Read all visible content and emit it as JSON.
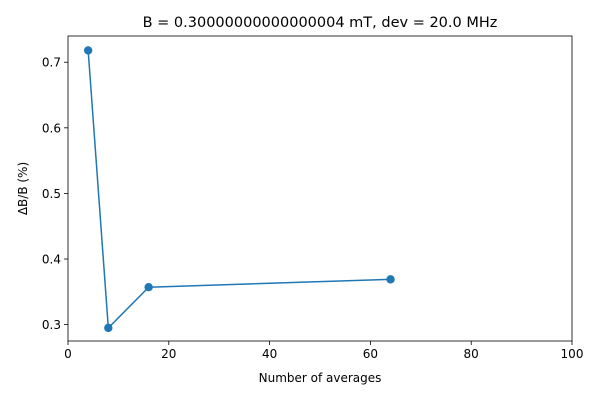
{
  "chart_data": {
    "type": "line",
    "title": "B = 0.30000000000000004 mT, dev = 20.0 MHz",
    "xlabel": "Number of averages",
    "ylabel": "ΔB/B (%)",
    "xlim": [
      0,
      100
    ],
    "ylim": [
      0.275,
      0.74
    ],
    "xticks": [
      0,
      20,
      40,
      60,
      80,
      100
    ],
    "yticks": [
      0.3,
      0.4,
      0.5,
      0.6,
      0.7
    ],
    "xtick_labels": [
      "0",
      "20",
      "40",
      "60",
      "80",
      "100"
    ],
    "ytick_labels": [
      "0.3",
      "0.4",
      "0.5",
      "0.6",
      "0.7"
    ],
    "grid": false,
    "series": [
      {
        "color": "#1f77b4",
        "marker": "circle",
        "x": [
          4,
          8,
          16,
          64
        ],
        "y": [
          0.718,
          0.295,
          0.357,
          0.369
        ]
      }
    ]
  }
}
